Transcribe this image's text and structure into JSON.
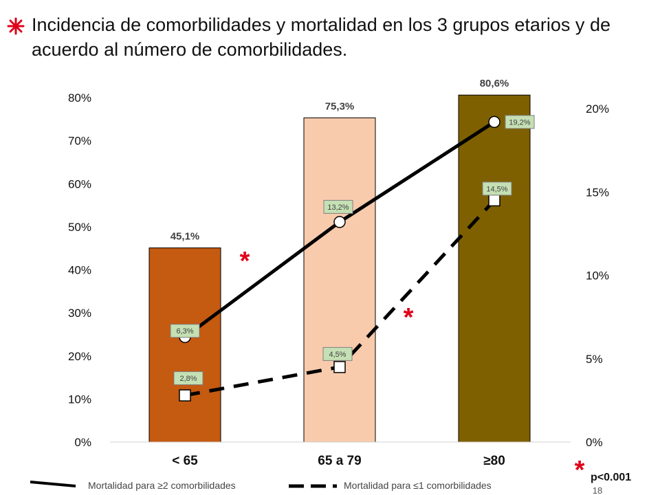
{
  "slide": {
    "title": "Incidencia de comorbilidades y mortalidad en los 3 grupos etarios y de acuerdo al número de comorbilidades.",
    "bullet_icon": "asterisk-icon",
    "page_number": "18",
    "significance_note": "p<0.001",
    "significance_mark": "*",
    "colors": {
      "accent": "#e0001a",
      "bar1": "#c55a11",
      "bar2": "#f8cbad",
      "bar3": "#7f6000",
      "label_bg": "#c5e0b4"
    }
  },
  "chart_data": {
    "type": "bar",
    "categories": [
      "< 65",
      "65 a 79",
      "≥80"
    ],
    "values": [
      45.1,
      75.3,
      80.6
    ],
    "value_labels": [
      "45,1%",
      "75,3%",
      "80,6%"
    ],
    "ylim": [
      0,
      80
    ],
    "y_ticks": [
      "0%",
      "10%",
      "20%",
      "30%",
      "40%",
      "50%",
      "60%",
      "70%",
      "80%"
    ],
    "y2lim": [
      0,
      20
    ],
    "y2_ticks": [
      "0%",
      "5%",
      "10%",
      "15%",
      "20%"
    ],
    "series": [
      {
        "name": "Mortalidad para ≥2 comorbilidades",
        "type": "line",
        "axis": "right",
        "values": [
          6.3,
          13.2,
          19.2
        ],
        "labels": [
          "6,3%",
          "13,2%",
          "19,2%"
        ],
        "style": "solid",
        "marker": "circle"
      },
      {
        "name": "Mortalidad para ≤1 comorbilidades",
        "type": "line",
        "axis": "right",
        "values": [
          2.8,
          4.5,
          14.5
        ],
        "labels": [
          "2,8%",
          "4,5%",
          "14,5%"
        ],
        "style": "dashed",
        "marker": "square"
      }
    ],
    "annotations": [
      "*",
      "*"
    ],
    "grid": false,
    "legend_position": "bottom"
  }
}
